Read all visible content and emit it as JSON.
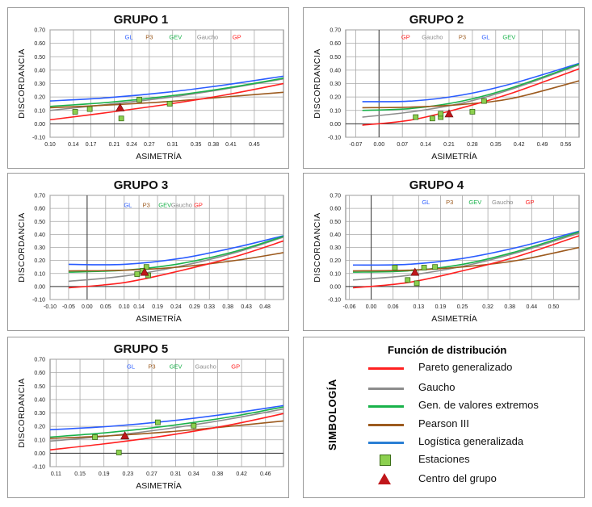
{
  "colors": {
    "pareto": "#ff2020",
    "gaucho": "#8c8c8c",
    "gev": "#19b24a",
    "pearson": "#9c5a1e",
    "gl": "#2a5cff",
    "station": "#8cd04f",
    "center": "#c0161a"
  },
  "legend": {
    "title": "Función de distribución",
    "side_label": "SIMBOLOGÍA",
    "items": [
      {
        "label": "Pareto generalizado",
        "key": "pareto"
      },
      {
        "label": "Gaucho",
        "key": "gaucho"
      },
      {
        "label": "Gen. de valores extremos",
        "key": "gev"
      },
      {
        "label": "Pearson III",
        "key": "pearson"
      },
      {
        "label": "Logística generalizada",
        "key": "gl"
      },
      {
        "label": "Estaciones",
        "key": "station"
      },
      {
        "label": "Centro del grupo",
        "key": "center"
      }
    ]
  },
  "chart_data": [
    {
      "type": "line",
      "title": "GRUPO 1",
      "xlabel": "ASIMETRÍA",
      "ylabel": "DISCORDANCIA",
      "xlim": [
        0.1,
        0.5
      ],
      "ylim": [
        -0.1,
        0.7
      ],
      "xticks": [
        "0.10",
        "0.14",
        "0.17",
        "0.21",
        "0.24",
        "0.27",
        "0.31",
        "0.35",
        "0.38",
        "0.41",
        "0.45"
      ],
      "yticks": [
        "-0.10",
        "0.00",
        "0.10",
        "0.20",
        "0.30",
        "0.40",
        "0.50",
        "0.60",
        "0.70"
      ],
      "labels": [
        {
          "text": "GL",
          "key": "gl",
          "x": 0.235,
          "y": 0.65
        },
        {
          "text": "P3",
          "key": "pearson",
          "x": 0.27,
          "y": 0.65
        },
        {
          "text": "GEV",
          "key": "gev",
          "x": 0.315,
          "y": 0.65
        },
        {
          "text": "Gaucho",
          "key": "gaucho",
          "x": 0.37,
          "y": 0.65
        },
        {
          "text": "GP",
          "key": "pareto",
          "x": 0.42,
          "y": 0.65
        }
      ],
      "series": [
        {
          "key": "gl",
          "x": [
            0.1,
            0.2,
            0.3,
            0.4,
            0.5
          ],
          "y": [
            0.17,
            0.195,
            0.235,
            0.29,
            0.355
          ]
        },
        {
          "key": "gaucho",
          "x": [
            0.1,
            0.2,
            0.3,
            0.4,
            0.5
          ],
          "y": [
            0.1,
            0.145,
            0.195,
            0.26,
            0.335
          ]
        },
        {
          "key": "gev",
          "x": [
            0.1,
            0.2,
            0.3,
            0.4,
            0.5
          ],
          "y": [
            0.13,
            0.16,
            0.205,
            0.265,
            0.34
          ]
        },
        {
          "key": "pearson",
          "x": [
            0.1,
            0.2,
            0.3,
            0.4,
            0.5
          ],
          "y": [
            0.12,
            0.14,
            0.165,
            0.2,
            0.235
          ]
        },
        {
          "key": "pareto",
          "x": [
            0.1,
            0.2,
            0.3,
            0.4,
            0.5
          ],
          "y": [
            0.03,
            0.085,
            0.145,
            0.215,
            0.3
          ]
        }
      ],
      "stations": [
        [
          0.143,
          0.09
        ],
        [
          0.168,
          0.11
        ],
        [
          0.222,
          0.04
        ],
        [
          0.253,
          0.18
        ],
        [
          0.305,
          0.15
        ]
      ],
      "center": [
        0.22,
        0.12
      ]
    },
    {
      "type": "line",
      "title": "GRUPO 2",
      "xlabel": "ASIMETRÍA",
      "ylabel": "DISCORDANCIA",
      "xlim": [
        -0.1,
        0.6
      ],
      "ylim": [
        -0.1,
        0.7
      ],
      "xticks": [
        "-0.07",
        "0.00",
        "0.07",
        "0.14",
        "0.21",
        "0.28",
        "0.35",
        "0.42",
        "0.49",
        "0.56"
      ],
      "yticks": [
        "-0.10",
        "0.00",
        "0.10",
        "0.20",
        "0.30",
        "0.40",
        "0.50",
        "0.60",
        "0.70"
      ],
      "labels": [
        {
          "text": "GP",
          "key": "pareto",
          "x": 0.08,
          "y": 0.65
        },
        {
          "text": "Gaucho",
          "key": "gaucho",
          "x": 0.16,
          "y": 0.65
        },
        {
          "text": "P3",
          "key": "pearson",
          "x": 0.25,
          "y": 0.65
        },
        {
          "text": "GL",
          "key": "gl",
          "x": 0.32,
          "y": 0.65
        },
        {
          "text": "GEV",
          "key": "gev",
          "x": 0.39,
          "y": 0.65
        }
      ],
      "series": [
        {
          "key": "gl",
          "x": [
            -0.05,
            0.1,
            0.25,
            0.4,
            0.6
          ],
          "y": [
            0.165,
            0.17,
            0.215,
            0.3,
            0.45
          ]
        },
        {
          "key": "gaucho",
          "x": [
            -0.05,
            0.1,
            0.25,
            0.4,
            0.6
          ],
          "y": [
            0.05,
            0.09,
            0.155,
            0.26,
            0.44
          ]
        },
        {
          "key": "gev",
          "x": [
            -0.05,
            0.1,
            0.25,
            0.4,
            0.6
          ],
          "y": [
            0.1,
            0.115,
            0.17,
            0.27,
            0.445
          ]
        },
        {
          "key": "pearson",
          "x": [
            -0.05,
            0.1,
            0.25,
            0.4,
            0.6
          ],
          "y": [
            0.12,
            0.125,
            0.145,
            0.19,
            0.32
          ]
        },
        {
          "key": "pareto",
          "x": [
            -0.05,
            0.1,
            0.25,
            0.4,
            0.6
          ],
          "y": [
            -0.01,
            0.03,
            0.12,
            0.23,
            0.41
          ]
        }
      ],
      "stations": [
        [
          0.11,
          0.05
        ],
        [
          0.16,
          0.04
        ],
        [
          0.185,
          0.05
        ],
        [
          0.185,
          0.075
        ],
        [
          0.28,
          0.09
        ],
        [
          0.315,
          0.17
        ]
      ],
      "center": [
        0.21,
        0.075
      ]
    },
    {
      "type": "line",
      "title": "GRUPO 3",
      "xlabel": "ASIMETRÍA",
      "ylabel": "DISCORDANCIA",
      "xlim": [
        -0.1,
        0.53
      ],
      "ylim": [
        -0.1,
        0.7
      ],
      "xticks": [
        "-0.10",
        "-0.05",
        "0.00",
        "0.05",
        "0.10",
        "0.14",
        "0.19",
        "0.24",
        "0.29",
        "0.33",
        "0.38",
        "0.43",
        "0.48"
      ],
      "yticks": [
        "-0.10",
        "0.00",
        "0.10",
        "0.20",
        "0.30",
        "0.40",
        "0.50",
        "0.60",
        "0.70"
      ],
      "labels": [
        {
          "text": "GL",
          "key": "gl",
          "x": 0.11,
          "y": 0.63
        },
        {
          "text": "P3",
          "key": "pearson",
          "x": 0.16,
          "y": 0.63
        },
        {
          "text": "GEV",
          "key": "gev",
          "x": 0.21,
          "y": 0.63
        },
        {
          "text": "Gaucho",
          "key": "gaucho",
          "x": 0.255,
          "y": 0.63
        },
        {
          "text": "GP",
          "key": "pareto",
          "x": 0.3,
          "y": 0.63
        }
      ],
      "series": [
        {
          "key": "gl",
          "x": [
            -0.05,
            0.1,
            0.25,
            0.4,
            0.53
          ],
          "y": [
            0.17,
            0.17,
            0.215,
            0.3,
            0.39
          ]
        },
        {
          "key": "gaucho",
          "x": [
            -0.05,
            0.1,
            0.25,
            0.4,
            0.53
          ],
          "y": [
            0.04,
            0.08,
            0.155,
            0.26,
            0.38
          ]
        },
        {
          "key": "gev",
          "x": [
            -0.05,
            0.1,
            0.25,
            0.4,
            0.53
          ],
          "y": [
            0.11,
            0.125,
            0.175,
            0.27,
            0.385
          ]
        },
        {
          "key": "pearson",
          "x": [
            -0.05,
            0.1,
            0.25,
            0.4,
            0.53
          ],
          "y": [
            0.12,
            0.125,
            0.15,
            0.2,
            0.26
          ]
        },
        {
          "key": "pareto",
          "x": [
            -0.05,
            0.1,
            0.25,
            0.4,
            0.53
          ],
          "y": [
            -0.01,
            0.03,
            0.12,
            0.23,
            0.35
          ]
        }
      ],
      "stations": [
        [
          0.135,
          0.095
        ],
        [
          0.15,
          0.12
        ],
        [
          0.16,
          0.15
        ],
        [
          0.165,
          0.085
        ]
      ],
      "center": [
        0.155,
        0.11
      ]
    },
    {
      "type": "line",
      "title": "GRUPO 4",
      "xlabel": "ASIMETRÍA",
      "ylabel": "DISCORDANCIA",
      "xlim": [
        -0.07,
        0.57
      ],
      "ylim": [
        -0.1,
        0.7
      ],
      "xticks": [
        "-0.06",
        "0.00",
        "0.06",
        "0.13",
        "0.19",
        "0.25",
        "0.32",
        "0.38",
        "0.44",
        "0.50"
      ],
      "yticks": [
        "-0.10",
        "0.00",
        "0.10",
        "0.20",
        "0.30",
        "0.40",
        "0.50",
        "0.60",
        "0.70"
      ],
      "labels": [
        {
          "text": "GL",
          "key": "gl",
          "x": 0.15,
          "y": 0.65
        },
        {
          "text": "P3",
          "key": "pearson",
          "x": 0.215,
          "y": 0.65
        },
        {
          "text": "GEV",
          "key": "gev",
          "x": 0.285,
          "y": 0.65
        },
        {
          "text": "Gaucho",
          "key": "gaucho",
          "x": 0.36,
          "y": 0.65
        },
        {
          "text": "GP",
          "key": "pareto",
          "x": 0.435,
          "y": 0.65
        }
      ],
      "series": [
        {
          "key": "gl",
          "x": [
            -0.05,
            0.1,
            0.25,
            0.4,
            0.57
          ],
          "y": [
            0.165,
            0.17,
            0.215,
            0.3,
            0.425
          ]
        },
        {
          "key": "gaucho",
          "x": [
            -0.05,
            0.1,
            0.25,
            0.4,
            0.57
          ],
          "y": [
            0.05,
            0.085,
            0.155,
            0.26,
            0.41
          ]
        },
        {
          "key": "gev",
          "x": [
            -0.05,
            0.1,
            0.25,
            0.4,
            0.57
          ],
          "y": [
            0.11,
            0.12,
            0.17,
            0.27,
            0.42
          ]
        },
        {
          "key": "pearson",
          "x": [
            -0.05,
            0.1,
            0.25,
            0.4,
            0.57
          ],
          "y": [
            0.12,
            0.125,
            0.15,
            0.2,
            0.3
          ]
        },
        {
          "key": "pareto",
          "x": [
            -0.05,
            0.1,
            0.25,
            0.4,
            0.57
          ],
          "y": [
            -0.01,
            0.03,
            0.12,
            0.23,
            0.39
          ]
        }
      ],
      "stations": [
        [
          0.065,
          0.145
        ],
        [
          0.1,
          0.05
        ],
        [
          0.125,
          0.025
        ],
        [
          0.145,
          0.145
        ],
        [
          0.175,
          0.15
        ]
      ],
      "center": [
        0.12,
        0.11
      ]
    },
    {
      "type": "line",
      "title": "GRUPO 5",
      "xlabel": "ASIMETRÍA",
      "ylabel": "DISCORDANCIA",
      "xlim": [
        0.1,
        0.49
      ],
      "ylim": [
        -0.1,
        0.7
      ],
      "xticks": [
        "0.11",
        "0.15",
        "0.19",
        "0.23",
        "0.27",
        "0.31",
        "0.34",
        "0.38",
        "0.42",
        "0.46"
      ],
      "yticks": [
        "-0.10",
        "0.00",
        "0.10",
        "0.20",
        "0.30",
        "0.40",
        "0.50",
        "0.60",
        "0.70"
      ],
      "labels": [
        {
          "text": "GL",
          "key": "gl",
          "x": 0.235,
          "y": 0.65
        },
        {
          "text": "P3",
          "key": "pearson",
          "x": 0.27,
          "y": 0.65
        },
        {
          "text": "GEV",
          "key": "gev",
          "x": 0.31,
          "y": 0.65
        },
        {
          "text": "Gaucho",
          "key": "gaucho",
          "x": 0.36,
          "y": 0.65
        },
        {
          "text": "GP",
          "key": "pareto",
          "x": 0.41,
          "y": 0.65
        }
      ],
      "series": [
        {
          "key": "gl",
          "x": [
            0.1,
            0.2,
            0.3,
            0.4,
            0.49
          ],
          "y": [
            0.175,
            0.2,
            0.24,
            0.295,
            0.355
          ]
        },
        {
          "key": "gaucho",
          "x": [
            0.1,
            0.2,
            0.3,
            0.4,
            0.49
          ],
          "y": [
            0.09,
            0.13,
            0.185,
            0.255,
            0.33
          ]
        },
        {
          "key": "gev",
          "x": [
            0.1,
            0.2,
            0.3,
            0.4,
            0.49
          ],
          "y": [
            0.12,
            0.155,
            0.205,
            0.27,
            0.345
          ]
        },
        {
          "key": "pearson",
          "x": [
            0.1,
            0.2,
            0.3,
            0.4,
            0.49
          ],
          "y": [
            0.11,
            0.13,
            0.16,
            0.2,
            0.24
          ]
        },
        {
          "key": "pareto",
          "x": [
            0.1,
            0.2,
            0.3,
            0.4,
            0.49
          ],
          "y": [
            0.025,
            0.075,
            0.135,
            0.21,
            0.295
          ]
        }
      ],
      "stations": [
        [
          0.175,
          0.12
        ],
        [
          0.215,
          0.005
        ],
        [
          0.28,
          0.23
        ],
        [
          0.34,
          0.205
        ]
      ],
      "center": [
        0.225,
        0.13
      ]
    }
  ]
}
